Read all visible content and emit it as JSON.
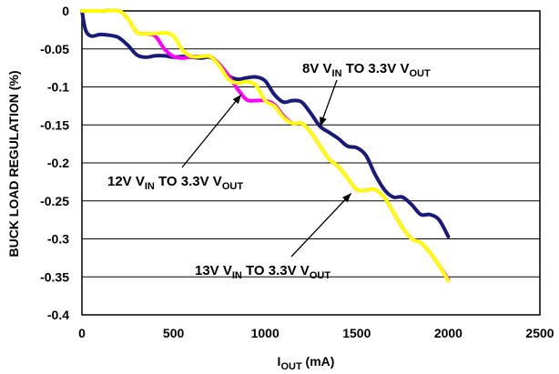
{
  "chart_data": {
    "type": "line",
    "xlabel": {
      "main": "I",
      "sub": "OUT",
      "rest": " (mA)"
    },
    "ylabel": "BUCK LOAD REGULATION (%)",
    "xlim": [
      0,
      2500
    ],
    "ylim": [
      -0.4,
      0
    ],
    "xticks": [
      0,
      500,
      1000,
      1500,
      2000,
      2500
    ],
    "yticks": [
      0,
      -0.05,
      -0.1,
      -0.15,
      -0.2,
      -0.25,
      -0.3,
      -0.35,
      -0.4
    ],
    "xtick_labels": [
      "0",
      "500",
      "1000",
      "1500",
      "2000",
      "2500"
    ],
    "ytick_labels": [
      "0",
      "-0.05",
      "-0.1",
      "-0.15",
      "-0.2",
      "-0.25",
      "-0.3",
      "-0.35",
      "-0.4"
    ],
    "grid": true,
    "series": [
      {
        "name": "8V VIN TO 3.3V VOUT",
        "color": "#1a1a7a",
        "points": [
          [
            0,
            0
          ],
          [
            20,
            -0.025
          ],
          [
            50,
            -0.033
          ],
          [
            100,
            -0.031
          ],
          [
            150,
            -0.032
          ],
          [
            200,
            -0.035
          ],
          [
            250,
            -0.045
          ],
          [
            300,
            -0.058
          ],
          [
            350,
            -0.061
          ],
          [
            400,
            -0.059
          ],
          [
            450,
            -0.059
          ],
          [
            500,
            -0.061
          ],
          [
            550,
            -0.06
          ],
          [
            600,
            -0.061
          ],
          [
            650,
            -0.062
          ],
          [
            700,
            -0.061
          ],
          [
            750,
            -0.07
          ],
          [
            800,
            -0.085
          ],
          [
            850,
            -0.09
          ],
          [
            900,
            -0.088
          ],
          [
            950,
            -0.087
          ],
          [
            1000,
            -0.092
          ],
          [
            1050,
            -0.11
          ],
          [
            1100,
            -0.12
          ],
          [
            1150,
            -0.118
          ],
          [
            1200,
            -0.12
          ],
          [
            1250,
            -0.135
          ],
          [
            1300,
            -0.152
          ],
          [
            1350,
            -0.16
          ],
          [
            1400,
            -0.168
          ],
          [
            1450,
            -0.178
          ],
          [
            1500,
            -0.18
          ],
          [
            1550,
            -0.19
          ],
          [
            1600,
            -0.215
          ],
          [
            1650,
            -0.235
          ],
          [
            1700,
            -0.245
          ],
          [
            1750,
            -0.245
          ],
          [
            1800,
            -0.255
          ],
          [
            1850,
            -0.268
          ],
          [
            1900,
            -0.268
          ],
          [
            1950,
            -0.275
          ],
          [
            2000,
            -0.297
          ]
        ]
      },
      {
        "name": "12V VIN TO 3.3V VOUT",
        "color": "#ff00ff",
        "points": [
          [
            0,
            0
          ],
          [
            100,
            0
          ],
          [
            200,
            0
          ],
          [
            250,
            -0.01
          ],
          [
            300,
            -0.028
          ],
          [
            350,
            -0.03
          ],
          [
            400,
            -0.033
          ],
          [
            450,
            -0.05
          ],
          [
            500,
            -0.06
          ],
          [
            550,
            -0.062
          ],
          [
            600,
            -0.06
          ],
          [
            650,
            -0.06
          ],
          [
            700,
            -0.06
          ],
          [
            750,
            -0.07
          ],
          [
            800,
            -0.085
          ],
          [
            850,
            -0.103
          ],
          [
            900,
            -0.117
          ],
          [
            950,
            -0.118
          ],
          [
            1000,
            -0.118
          ],
          [
            1050,
            -0.123
          ],
          [
            1100,
            -0.138
          ],
          [
            1150,
            -0.148
          ],
          [
            1200,
            -0.148
          ],
          [
            1250,
            -0.16
          ],
          [
            1300,
            -0.178
          ],
          [
            1350,
            -0.195
          ],
          [
            1400,
            -0.205
          ],
          [
            1450,
            -0.22
          ],
          [
            1500,
            -0.235
          ],
          [
            1550,
            -0.236
          ],
          [
            1600,
            -0.235
          ],
          [
            1650,
            -0.245
          ],
          [
            1700,
            -0.265
          ],
          [
            1750,
            -0.285
          ],
          [
            1800,
            -0.3
          ],
          [
            1850,
            -0.305
          ],
          [
            1900,
            -0.318
          ],
          [
            1950,
            -0.335
          ],
          [
            2000,
            -0.353
          ]
        ]
      },
      {
        "name": "13V VIN TO 3.3V VOUT",
        "color": "#ffff00",
        "points": [
          [
            0,
            0
          ],
          [
            100,
            0
          ],
          [
            200,
            0
          ],
          [
            250,
            -0.01
          ],
          [
            300,
            -0.028
          ],
          [
            350,
            -0.03
          ],
          [
            400,
            -0.03
          ],
          [
            450,
            -0.029
          ],
          [
            500,
            -0.033
          ],
          [
            550,
            -0.052
          ],
          [
            600,
            -0.06
          ],
          [
            650,
            -0.06
          ],
          [
            700,
            -0.06
          ],
          [
            750,
            -0.072
          ],
          [
            800,
            -0.09
          ],
          [
            850,
            -0.095
          ],
          [
            900,
            -0.093
          ],
          [
            950,
            -0.098
          ],
          [
            1000,
            -0.118
          ],
          [
            1050,
            -0.125
          ],
          [
            1100,
            -0.14
          ],
          [
            1150,
            -0.148
          ],
          [
            1200,
            -0.148
          ],
          [
            1250,
            -0.16
          ],
          [
            1300,
            -0.178
          ],
          [
            1350,
            -0.195
          ],
          [
            1400,
            -0.205
          ],
          [
            1450,
            -0.22
          ],
          [
            1500,
            -0.235
          ],
          [
            1550,
            -0.236
          ],
          [
            1600,
            -0.235
          ],
          [
            1650,
            -0.245
          ],
          [
            1700,
            -0.265
          ],
          [
            1750,
            -0.285
          ],
          [
            1800,
            -0.3
          ],
          [
            1850,
            -0.305
          ],
          [
            1900,
            -0.318
          ],
          [
            1950,
            -0.335
          ],
          [
            2000,
            -0.355
          ]
        ]
      }
    ],
    "annotations": [
      {
        "main": "8V V",
        "sub1": "IN",
        "mid": " TO 3.3V V",
        "sub2": "OUT",
        "pointer_to": [
          1300,
          -0.152
        ]
      },
      {
        "main": "12V V",
        "sub1": "IN",
        "mid": " TO 3.3V V",
        "sub2": "OUT",
        "pointer_to": [
          870,
          -0.11
        ]
      },
      {
        "main": "13V V",
        "sub1": "IN",
        "mid": " TO 3.3V V",
        "sub2": "OUT",
        "pointer_to": [
          1470,
          -0.24
        ]
      }
    ]
  }
}
